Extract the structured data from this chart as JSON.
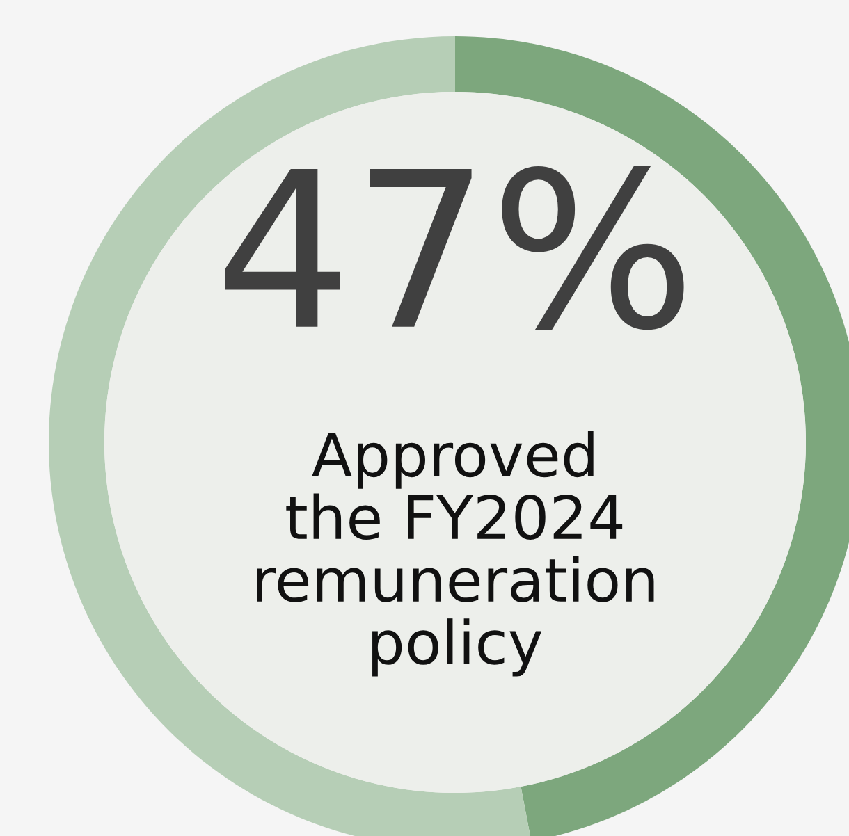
{
  "chart_data": {
    "type": "donut",
    "categories": [
      null,
      null
    ],
    "values": [
      47,
      53
    ],
    "colors": [
      "#7da77d",
      "#b6ceb6"
    ],
    "value_labels": [
      "47%",
      null
    ],
    "annotations": [
      "Approved\nthe FY2024\nremuneration\npolicy"
    ],
    "legend": false
  }
}
